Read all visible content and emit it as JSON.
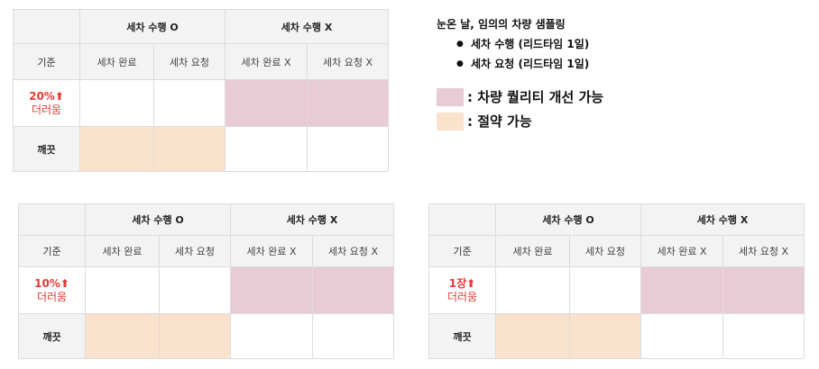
{
  "headers": {
    "wash_done": "세차 수행 O",
    "wash_not": "세차 수행 X",
    "criterion": "기준",
    "cols": [
      "세차 완료",
      "세차 요청",
      "세차 완료 X",
      "세차 요청 X"
    ]
  },
  "tables": [
    {
      "threshold": "20%⬆",
      "dirty_label": "더러움",
      "clean_label": "깨끗"
    },
    {
      "threshold": "10%⬆",
      "dirty_label": "더러움",
      "clean_label": "깨끗"
    },
    {
      "threshold": "1장⬆",
      "dirty_label": "더러움",
      "clean_label": "깨끗"
    }
  ],
  "legend": {
    "title": "눈온 날, 임의의 차량 샘플링",
    "bullets": [
      "세차 수행 (리드타임 1일)",
      "세차 요청 (리드타임 1일)"
    ],
    "bullet_symbol": "●",
    "keys": [
      {
        "label": ": 차량 퀄리티 개선 가능",
        "color": "#e8cbd5"
      },
      {
        "label": ": 절약 가능",
        "color": "#fbe2cc"
      }
    ]
  }
}
